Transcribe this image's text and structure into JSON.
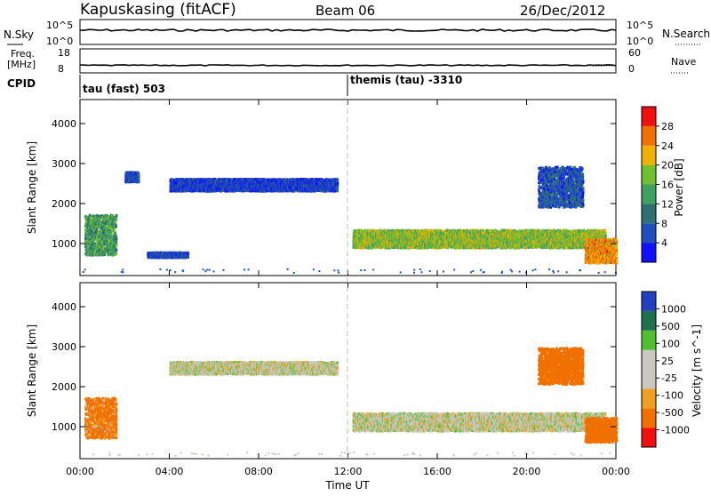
{
  "header": {
    "station": "Kapuskasing (fitACF)",
    "beam": "Beam 06",
    "date": "26/Dec/2012"
  },
  "top_panels": {
    "nsky_label": "N.Sky",
    "nsky_ticks": [
      "10^5",
      "10^0"
    ],
    "nsearch_label": "N.Search",
    "nsearch_ticks": [
      "10^5",
      "10^0"
    ],
    "freq_label_1": "Freq.",
    "freq_label_2": "[MHz]",
    "freq_ticks": [
      "18",
      "8"
    ],
    "nave_label": "Nave",
    "nave_ticks": [
      "60",
      "0"
    ],
    "cpid_label": "CPID",
    "cpid_segments": [
      {
        "start_hour": 0,
        "text": "tau (fast) 503"
      },
      {
        "start_hour": 12,
        "text": "themis (tau) -3310"
      }
    ]
  },
  "x_axis": {
    "label": "Time UT",
    "ticks": [
      "00:00",
      "04:00",
      "08:00",
      "12:00",
      "16:00",
      "20:00",
      "00:00"
    ],
    "range_hours": [
      0,
      24
    ]
  },
  "colors": {
    "power": [
      "#1010ff",
      "#2050c0",
      "#307070",
      "#40a060",
      "#70c030",
      "#f0b000",
      "#f07000",
      "#f01010"
    ],
    "velocity": [
      "#f01010",
      "#f07000",
      "#f0a020",
      "#c8c8c0",
      "#c8c8c0",
      "#50c030",
      "#207050",
      "#2040c0"
    ],
    "grey": "#c8c8c0",
    "line": "#000000"
  },
  "chart_data": [
    {
      "type": "heatmap",
      "title": "Power",
      "xlabel": "Time UT",
      "ylabel": "Slant Range [km]",
      "y_ticks": [
        "1000",
        "2000",
        "3000",
        "4000"
      ],
      "ylim": [
        200,
        4600
      ],
      "colorbar_label": "Power [dB]",
      "colorbar_ticks": [
        "4",
        "8",
        "12",
        "16",
        "20",
        "24",
        "28"
      ],
      "color_range": [
        0,
        32
      ],
      "echo_regions": [
        {
          "t_start": 0.2,
          "t_end": 1.6,
          "r_center": 1200,
          "r_half": 500,
          "level": 14
        },
        {
          "t_start": 2.0,
          "t_end": 2.6,
          "r_center": 2650,
          "r_half": 120,
          "level": 6
        },
        {
          "t_start": 3.0,
          "t_end": 4.8,
          "r_center": 700,
          "r_half": 60,
          "level": 6
        },
        {
          "t_start": 4.0,
          "t_end": 11.5,
          "r_center": 2450,
          "r_half": 150,
          "level": 5
        },
        {
          "t_start": 12.2,
          "t_end": 23.5,
          "r_center": 1100,
          "r_half": 220,
          "level": 18
        },
        {
          "t_start": 20.5,
          "t_end": 22.5,
          "r_center": 2400,
          "r_half": 500,
          "level": 7
        },
        {
          "t_start": 22.6,
          "t_end": 24,
          "r_center": 800,
          "r_half": 300,
          "level": 24
        }
      ]
    },
    {
      "type": "heatmap",
      "title": "Velocity",
      "xlabel": "Time UT",
      "ylabel": "Slant Range [km]",
      "y_ticks": [
        "1000",
        "2000",
        "3000",
        "4000"
      ],
      "ylim": [
        200,
        4600
      ],
      "colorbar_label": "Velocity [m s^-1]",
      "colorbar_ticks": [
        "1000",
        "500",
        "100",
        "25",
        "-25",
        "-100",
        "-500",
        "-1000"
      ],
      "echo_regions": [
        {
          "t_start": 0.2,
          "t_end": 1.6,
          "r_center": 1200,
          "r_half": 500,
          "level": -150
        },
        {
          "t_start": 4.0,
          "t_end": 11.5,
          "r_center": 2450,
          "r_half": 150,
          "level": 0
        },
        {
          "t_start": 12.2,
          "t_end": 23.5,
          "r_center": 1100,
          "r_half": 220,
          "level": 0
        },
        {
          "t_start": 20.5,
          "t_end": 22.5,
          "r_center": 2500,
          "r_half": 450,
          "level": -300
        },
        {
          "t_start": 22.6,
          "t_end": 24,
          "r_center": 900,
          "r_half": 300,
          "level": -400
        }
      ]
    }
  ]
}
